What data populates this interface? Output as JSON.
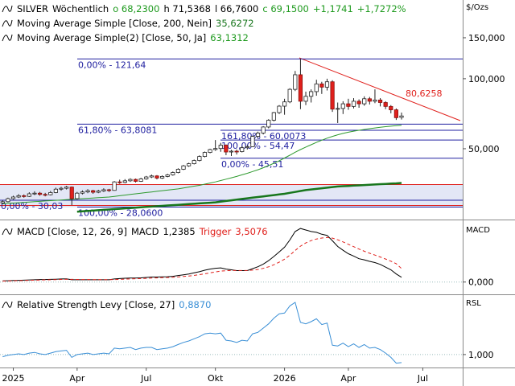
{
  "chart_data": [
    {
      "type": "candlestick",
      "legend": {
        "symbol": "SILVER",
        "interval": "Wöchentlich",
        "quote": [
          "o 68,2300",
          "h 71,5368",
          "l 66,7600",
          "c 69,1500",
          "+1,1741",
          "+1,7272%"
        ]
      },
      "categories": [
        null,
        null,
        "2025",
        null,
        null,
        null,
        null,
        null,
        null,
        null,
        null,
        null,
        null,
        null,
        "Apr",
        null,
        null,
        null,
        null,
        null,
        null,
        null,
        null,
        null,
        null,
        null,
        null,
        "Jul",
        null,
        null,
        null,
        null,
        null,
        null,
        null,
        null,
        null,
        null,
        null,
        null,
        "Okt",
        null,
        null,
        null,
        null,
        null,
        null,
        null,
        null,
        null,
        null,
        null,
        null,
        "2026",
        null,
        null,
        null,
        null,
        null,
        null,
        null,
        null,
        null,
        null,
        null,
        "Apr",
        null,
        null,
        null,
        null,
        null,
        null,
        null,
        null,
        null,
        null,
        null,
        null,
        null,
        "Jul",
        null,
        null,
        null,
        null,
        null,
        null,
        null
      ],
      "candles": [
        [
          29.2,
          30.0,
          28.9,
          29.6
        ],
        [
          29.6,
          30.8,
          29.4,
          30.5
        ],
        [
          30.5,
          31.4,
          30.2,
          31.0
        ],
        [
          31.0,
          31.9,
          30.7,
          31.4
        ],
        [
          31.4,
          31.8,
          30.8,
          31.2
        ],
        [
          31.2,
          32.5,
          31.0,
          32.0
        ],
        [
          32.0,
          32.8,
          31.6,
          32.2
        ],
        [
          32.2,
          32.6,
          31.4,
          31.8
        ],
        [
          31.8,
          32.3,
          31.2,
          31.7
        ],
        [
          31.7,
          32.9,
          31.5,
          32.4
        ],
        [
          32.4,
          34.0,
          32.2,
          33.5
        ],
        [
          33.5,
          34.3,
          33.0,
          33.8
        ],
        [
          33.8,
          34.6,
          33.4,
          34.2
        ],
        [
          34.2,
          34.4,
          28.6,
          30.5
        ],
        [
          30.5,
          32.6,
          30.2,
          32.2
        ],
        [
          32.2,
          33.1,
          31.8,
          32.6
        ],
        [
          32.6,
          33.5,
          32.2,
          33.0
        ],
        [
          33.0,
          33.3,
          32.0,
          32.5
        ],
        [
          32.5,
          33.3,
          32.2,
          32.9
        ],
        [
          32.9,
          33.8,
          32.6,
          33.3
        ],
        [
          33.3,
          33.6,
          32.6,
          33.1
        ],
        [
          33.1,
          36.3,
          33.0,
          36.0
        ],
        [
          36.0,
          36.8,
          35.3,
          35.8
        ],
        [
          35.8,
          37.0,
          35.5,
          36.4
        ],
        [
          36.4,
          37.3,
          36.0,
          36.9
        ],
        [
          36.9,
          37.2,
          35.8,
          36.2
        ],
        [
          36.2,
          37.5,
          36.0,
          37.1
        ],
        [
          37.1,
          38.2,
          36.8,
          37.8
        ],
        [
          37.8,
          38.7,
          37.4,
          38.2
        ],
        [
          38.2,
          38.5,
          36.9,
          37.4
        ],
        [
          37.4,
          38.4,
          37.1,
          38.0
        ],
        [
          38.0,
          39.0,
          37.7,
          38.6
        ],
        [
          38.6,
          39.9,
          38.3,
          39.5
        ],
        [
          39.5,
          41.2,
          39.2,
          40.8
        ],
        [
          40.8,
          42.6,
          40.5,
          42.2
        ],
        [
          42.2,
          43.5,
          41.8,
          43.1
        ],
        [
          43.1,
          44.9,
          42.8,
          44.5
        ],
        [
          44.5,
          46.8,
          44.1,
          46.3
        ],
        [
          46.3,
          48.6,
          45.9,
          48.2
        ],
        [
          48.2,
          50.0,
          47.8,
          49.6
        ],
        [
          49.6,
          54.5,
          49.0,
          50.1
        ],
        [
          50.1,
          53.0,
          48.5,
          51.8
        ],
        [
          51.8,
          52.2,
          46.9,
          48.4
        ],
        [
          48.4,
          49.5,
          46.5,
          48.8
        ],
        [
          48.8,
          49.6,
          47.2,
          48.6
        ],
        [
          48.6,
          51.2,
          48.2,
          50.5
        ],
        [
          50.5,
          51.8,
          49.6,
          51.0
        ],
        [
          51.0,
          57.0,
          50.8,
          56.5
        ],
        [
          56.5,
          59.2,
          55.8,
          58.4
        ],
        [
          58.4,
          62.5,
          57.6,
          62.0
        ],
        [
          62.0,
          67.0,
          61.2,
          66.3
        ],
        [
          66.3,
          72.0,
          65.5,
          71.5
        ],
        [
          71.5,
          77.0,
          70.5,
          76.2
        ],
        [
          76.2,
          82.0,
          70.0,
          79.5
        ],
        [
          79.5,
          91.0,
          78.5,
          90.0
        ],
        [
          90.0,
          108.0,
          88.5,
          104.0
        ],
        [
          104.0,
          121.64,
          74.0,
          80.0
        ],
        [
          80.0,
          88.0,
          77.0,
          84.0
        ],
        [
          84.0,
          90.0,
          79.0,
          88.0
        ],
        [
          88.0,
          99.0,
          84.5,
          95.0
        ],
        [
          95.0,
          97.0,
          86.0,
          92.0
        ],
        [
          92.0,
          100.0,
          89.0,
          97.0
        ],
        [
          97.0,
          98.5,
          72.0,
          74.0
        ],
        [
          74.0,
          79.0,
          64.5,
          74.5
        ],
        [
          74.5,
          80.0,
          70.5,
          78.0
        ],
        [
          78.0,
          82.0,
          73.5,
          76.0
        ],
        [
          76.0,
          82.5,
          74.5,
          80.0
        ],
        [
          80.0,
          81.5,
          75.0,
          78.0
        ],
        [
          78.0,
          84.0,
          76.5,
          82.0
        ],
        [
          82.0,
          83.5,
          77.5,
          80.0
        ],
        [
          80.0,
          90.0,
          78.5,
          81.0
        ],
        [
          81.0,
          82.5,
          76.0,
          79.0
        ],
        [
          79.0,
          80.0,
          74.0,
          76.0
        ],
        [
          76.0,
          77.0,
          71.0,
          73.5
        ],
        [
          73.5,
          74.5,
          66.5,
          67.98
        ],
        [
          68.23,
          71.5368,
          66.76,
          69.15
        ],
        null,
        null,
        null,
        null,
        null,
        null,
        null,
        null,
        null,
        null,
        null
      ],
      "up_color": "#ffffff",
      "down_color": "#e0201c",
      "series": [
        {
          "name": "Moving Average Simple [Close, 200, Nein]",
          "value_label": "35,6272",
          "color": "#17761c",
          "width": 2.5,
          "values": [
            null,
            null,
            null,
            null,
            null,
            null,
            null,
            null,
            null,
            null,
            null,
            null,
            null,
            null,
            26.8,
            26.9,
            27.0,
            27.1,
            27.2,
            27.3,
            27.4,
            27.5,
            27.6,
            27.7,
            27.8,
            27.9,
            28.0,
            28.1,
            28.2,
            28.3,
            28.4,
            28.5,
            28.6,
            28.7,
            28.8,
            28.9,
            29.0,
            29.1,
            29.2,
            29.3,
            29.4,
            29.6,
            29.8,
            30.0,
            30.2,
            30.4,
            30.6,
            30.8,
            31.0,
            31.2,
            31.4,
            31.6,
            31.8,
            32.0,
            32.3,
            32.6,
            32.9,
            33.2,
            33.4,
            33.6,
            33.8,
            34.0,
            34.2,
            34.4,
            34.5,
            34.6,
            34.7,
            34.8,
            34.9,
            35.0,
            35.1,
            35.2,
            35.3,
            35.4,
            35.5,
            35.6272,
            null,
            null,
            null,
            null,
            null,
            null,
            null,
            null,
            null,
            null,
            null
          ]
        },
        {
          "name": "Moving Average Simple(2) [Close, 50, Ja]",
          "value_label": "63,1312",
          "color": "#2e9a2e",
          "width": 1,
          "values": [
            29.0,
            29.1,
            29.2,
            29.3,
            29.4,
            29.5,
            29.6,
            29.7,
            29.8,
            29.9,
            30.0,
            30.1,
            30.2,
            30.3,
            30.4,
            30.5,
            30.6,
            30.7,
            30.8,
            30.9,
            31.0,
            31.2,
            31.4,
            31.6,
            31.8,
            32.0,
            32.2,
            32.4,
            32.6,
            32.8,
            33.0,
            33.2,
            33.4,
            33.6,
            33.9,
            34.2,
            34.5,
            34.8,
            35.2,
            35.6,
            36.0,
            36.5,
            37.0,
            37.5,
            38.0,
            38.6,
            39.2,
            39.9,
            40.6,
            41.4,
            42.3,
            43.3,
            44.4,
            45.6,
            46.9,
            48.3,
            49.6,
            50.8,
            52.0,
            53.2,
            54.4,
            55.5,
            56.5,
            57.4,
            58.2,
            58.9,
            59.5,
            60.0,
            60.5,
            61.0,
            61.4,
            61.8,
            62.2,
            62.5,
            62.8,
            63.1312,
            null,
            null,
            null,
            null,
            null,
            null,
            null,
            null,
            null,
            null,
            null
          ]
        }
      ],
      "log_scale": true,
      "ylim": [
        25,
        218
      ],
      "yticks": [
        {
          "value": 150,
          "label": "150,000"
        },
        {
          "value": 100,
          "label": "100,000"
        },
        {
          "value": 50,
          "label": "50,000"
        }
      ],
      "axis_label": "$/Ozs",
      "grid": false,
      "levels": [
        {
          "value": 121.64,
          "label": "0,00% - 121,64"
        },
        {
          "value": 63.8081,
          "label": "61,80% - 63,8081"
        },
        {
          "value": 60.0073,
          "label": "161,80% - 60,0073"
        },
        {
          "value": 54.47,
          "label": "100,00% - 54,47"
        },
        {
          "value": 45.51,
          "label": "0,00% - 45,51"
        },
        {
          "value": 30.03,
          "label": "0,00% - 30,03"
        },
        {
          "value": 28.06,
          "label": "100,00% - 28,0600"
        }
      ],
      "trendline_label": "80,6258"
    },
    {
      "type": "line",
      "legend_name": "MACD [Close, 12, 26, 9]",
      "series": [
        {
          "name": "MACD",
          "value_label": "1,2385",
          "color": "#000000",
          "values": [
            0.3,
            0.35,
            0.4,
            0.45,
            0.5,
            0.55,
            0.6,
            0.65,
            0.65,
            0.7,
            0.75,
            0.8,
            0.85,
            0.6,
            0.6,
            0.6,
            0.6,
            0.6,
            0.6,
            0.6,
            0.6,
            0.8,
            0.9,
            1.0,
            1.05,
            1.05,
            1.1,
            1.2,
            1.3,
            1.3,
            1.35,
            1.4,
            1.5,
            1.7,
            1.9,
            2.1,
            2.4,
            2.7,
            3.1,
            3.4,
            3.6,
            3.7,
            3.4,
            3.2,
            3.0,
            3.0,
            3.0,
            3.5,
            4.0,
            4.7,
            5.6,
            6.7,
            7.9,
            9.1,
            11.0,
            13.2,
            14.0,
            13.6,
            13.2,
            13.0,
            12.5,
            12.2,
            10.8,
            9.3,
            8.3,
            7.4,
            6.8,
            6.1,
            5.8,
            5.4,
            5.1,
            4.6,
            3.9,
            3.2,
            2.1,
            1.2385,
            null,
            null,
            null,
            null,
            null,
            null,
            null,
            null,
            null,
            null,
            null
          ]
        },
        {
          "name": "Trigger",
          "value_label": "3,5076",
          "color": "#e0201c",
          "dashed": true,
          "values": [
            0.25,
            0.28,
            0.32,
            0.36,
            0.4,
            0.45,
            0.5,
            0.54,
            0.58,
            0.6,
            0.64,
            0.68,
            0.72,
            0.7,
            0.68,
            0.66,
            0.65,
            0.64,
            0.63,
            0.62,
            0.62,
            0.66,
            0.7,
            0.76,
            0.82,
            0.86,
            0.91,
            0.97,
            1.03,
            1.08,
            1.14,
            1.19,
            1.25,
            1.34,
            1.45,
            1.58,
            1.74,
            1.93,
            2.16,
            2.41,
            2.65,
            2.86,
            2.97,
            3.01,
            3.01,
            3.01,
            3.01,
            3.11,
            3.29,
            3.57,
            3.97,
            4.52,
            5.2,
            5.98,
            7.0,
            8.24,
            9.39,
            10.23,
            10.83,
            11.26,
            11.51,
            11.65,
            11.48,
            11.04,
            10.49,
            9.87,
            9.26,
            8.63,
            8.06,
            7.53,
            7.04,
            6.55,
            6.02,
            5.46,
            4.79,
            3.5076,
            null,
            null,
            null,
            null,
            null,
            null,
            null,
            null,
            null,
            null,
            null
          ]
        }
      ],
      "ylim": [
        -3,
        15.5
      ],
      "yticks": [
        {
          "value": 0,
          "label": "0,000"
        }
      ],
      "axis_label": "MACD",
      "grid": true
    },
    {
      "type": "line",
      "legend_name": "Relative Strength Levy [Close, 27]",
      "series": [
        {
          "value_label": "0,8870",
          "color": "#3a8fd6",
          "values": [
            0.97,
            0.99,
            1.0,
            1.01,
            1.0,
            1.02,
            1.03,
            1.01,
            1.0,
            1.02,
            1.04,
            1.05,
            1.06,
            0.96,
            1.0,
            1.01,
            1.02,
            1.0,
            1.01,
            1.02,
            1.01,
            1.09,
            1.08,
            1.09,
            1.1,
            1.07,
            1.09,
            1.1,
            1.1,
            1.07,
            1.08,
            1.09,
            1.11,
            1.14,
            1.17,
            1.19,
            1.22,
            1.25,
            1.29,
            1.3,
            1.29,
            1.3,
            1.2,
            1.19,
            1.17,
            1.2,
            1.19,
            1.29,
            1.31,
            1.37,
            1.43,
            1.51,
            1.57,
            1.58,
            1.68,
            1.73,
            1.45,
            1.43,
            1.46,
            1.5,
            1.42,
            1.44,
            1.13,
            1.12,
            1.16,
            1.11,
            1.15,
            1.1,
            1.14,
            1.09,
            1.1,
            1.07,
            1.02,
            0.96,
            0.88,
            0.887,
            null,
            null,
            null,
            null,
            null,
            null,
            null,
            null,
            null,
            null,
            null
          ]
        }
      ],
      "ylim": [
        0.83,
        1.82
      ],
      "yticks": [
        {
          "value": 1,
          "label": "1,000"
        }
      ],
      "axis_label": "RSL",
      "grid": true
    }
  ]
}
